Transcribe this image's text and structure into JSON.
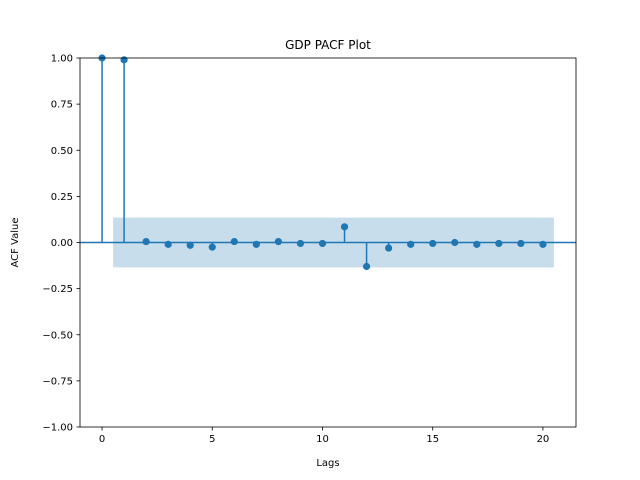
{
  "chart_data": {
    "type": "stem",
    "title": "GDP PACF Plot",
    "xlabel": "Lags",
    "ylabel": "ACF Value",
    "xlim": [
      -1,
      21.5
    ],
    "ylim": [
      -1.0,
      1.0
    ],
    "xticks": [
      0,
      5,
      10,
      15,
      20
    ],
    "yticks": [
      -1.0,
      -0.75,
      -0.5,
      -0.25,
      0.0,
      0.25,
      0.5,
      0.75,
      1.0
    ],
    "ytick_labels": [
      "−1.00",
      "−0.75",
      "−0.50",
      "−0.25",
      "0.00",
      "0.25",
      "0.50",
      "0.75",
      "1.00"
    ],
    "xtick_labels": [
      "0",
      "5",
      "10",
      "15",
      "20"
    ],
    "lags": [
      0,
      1,
      2,
      3,
      4,
      5,
      6,
      7,
      8,
      9,
      10,
      11,
      12,
      13,
      14,
      15,
      16,
      17,
      18,
      19,
      20
    ],
    "values": [
      1.0,
      0.99,
      0.005,
      -0.01,
      -0.015,
      -0.025,
      0.005,
      -0.01,
      0.005,
      -0.005,
      -0.005,
      0.085,
      -0.13,
      -0.03,
      -0.01,
      -0.005,
      0.0,
      -0.01,
      -0.005,
      -0.005,
      -0.01
    ],
    "confidence_band": {
      "x_range": [
        0.5,
        20.5
      ],
      "lower": -0.135,
      "upper": 0.135
    },
    "grid": false,
    "colors": {
      "series": "#1f77b4",
      "band": "#1f77b4",
      "axis": "#000000"
    }
  }
}
